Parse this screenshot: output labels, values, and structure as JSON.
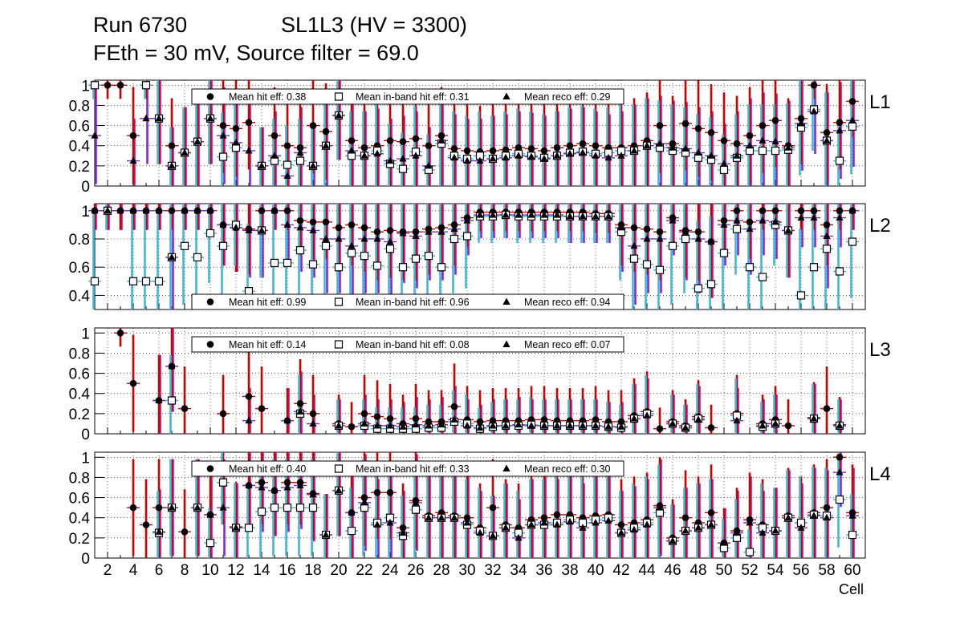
{
  "header": {
    "run": "Run 6730",
    "sl": "SL1L3 (HV = 3300)",
    "feth": "FEth = 30 mV, Source filter = 69.0"
  },
  "colors": {
    "hit_err": "#cc0000",
    "inband_err": "#33bbee",
    "reco_err": "#7a2fc8",
    "marker": "#000000",
    "open_marker_fill": "#ffffff",
    "grid": "#000000"
  },
  "chart_data": {
    "type": "scatter",
    "xlabel": "Cell",
    "xlim": [
      1,
      61
    ],
    "x_ticks": [
      2,
      4,
      6,
      8,
      10,
      12,
      14,
      16,
      18,
      20,
      22,
      24,
      26,
      28,
      30,
      32,
      34,
      36,
      38,
      40,
      42,
      44,
      46,
      48,
      50,
      52,
      54,
      56,
      58,
      60
    ],
    "panels": [
      {
        "label": "L1",
        "ylim": [
          0,
          1.05
        ],
        "y_ticks": [
          0,
          0.2,
          0.4,
          0.6,
          0.8,
          1
        ],
        "y_tick_labels": [
          "0",
          "0.2",
          "0.4",
          "0.6",
          "0.8",
          "1"
        ],
        "legend": {
          "position": "top",
          "hit": "Mean hit  eff: 0.38",
          "inband": "Mean in-band hit eff: 0.31",
          "reco": "Mean reco eff: 0.29"
        },
        "series": [
          {
            "name": "hit",
            "values": [
              1,
              1,
              1,
              0.5,
              1,
              0.67,
              0.4,
              0.33,
              0.44,
              0.67,
              0.6,
              0.57,
              0.63,
              0.2,
              0.5,
              0.4,
              0.38,
              0.6,
              0.54,
              0.7,
              0.45,
              0.38,
              0.4,
              0.45,
              0.44,
              0.47,
              0.4,
              0.5,
              0.37,
              0.35,
              0.34,
              0.35,
              0.36,
              0.38,
              0.37,
              0.35,
              0.38,
              0.4,
              0.42,
              0.4,
              0.38,
              0.38,
              0.4,
              0.45,
              0.6,
              0.42,
              0.62,
              0.57,
              0.53,
              0.45,
              0.42,
              0.5,
              0.6,
              0.65,
              0.4,
              0.67,
              1,
              0.53,
              0.63,
              0.84
            ]
          },
          {
            "name": "inband",
            "values": [
              1,
              null,
              null,
              null,
              1,
              0.67,
              0.2,
              0.33,
              0.44,
              0.67,
              0.29,
              0.38,
              null,
              0.2,
              0.25,
              0.21,
              0.25,
              0.2,
              0.4,
              0.7,
              0.3,
              0.3,
              0.35,
              0.22,
              0.17,
              0.34,
              0.16,
              0.42,
              0.3,
              0.27,
              0.3,
              0.27,
              0.3,
              0.32,
              0.3,
              0.28,
              0.3,
              0.33,
              0.34,
              0.32,
              0.33,
              0.35,
              0.35,
              0.4,
              0.38,
              0.35,
              0.33,
              0.28,
              0.26,
              0.16,
              0.28,
              0.35,
              0.35,
              0.35,
              0.36,
              0.58,
              0.76,
              0.45,
              0.25,
              0.59
            ]
          },
          {
            "name": "reco",
            "values": [
              0.5,
              null,
              null,
              0.25,
              0.67,
              0.67,
              0.2,
              0.33,
              0.44,
              0.67,
              0.5,
              0.43,
              0.35,
              0.2,
              0.3,
              0.1,
              0.33,
              0.2,
              0.4,
              0.7,
              0.35,
              0.3,
              0.32,
              0.25,
              0.27,
              0.3,
              0.2,
              0.45,
              0.28,
              0.25,
              0.25,
              0.27,
              0.28,
              0.3,
              0.29,
              0.27,
              0.3,
              0.32,
              0.33,
              0.3,
              0.28,
              0.3,
              0.35,
              0.4,
              0.42,
              0.38,
              0.37,
              0.33,
              0.3,
              0.22,
              0.3,
              0.4,
              0.45,
              0.44,
              0.38,
              0.62,
              0.74,
              0.45,
              0.55,
              0.65
            ]
          }
        ]
      },
      {
        "label": "L2",
        "ylim": [
          0.3,
          1.05
        ],
        "y_ticks": [
          0.4,
          0.6,
          0.8,
          1
        ],
        "y_tick_labels": [
          "0.4",
          "0.6",
          "0.8",
          "1"
        ],
        "legend": {
          "position": "bottom",
          "hit": "Mean hit  eff: 0.99",
          "inband": "Mean in-band hit eff: 0.96",
          "reco": "Mean reco eff: 0.94"
        },
        "series": [
          {
            "name": "hit",
            "values": [
              1,
              1,
              1,
              1,
              1,
              1,
              1,
              1,
              1,
              1,
              0.9,
              0.88,
              0.87,
              1,
              1,
              1,
              0.93,
              0.92,
              0.92,
              0.88,
              0.9,
              0.88,
              0.85,
              0.86,
              0.85,
              0.85,
              0.87,
              0.88,
              0.9,
              0.95,
              0.99,
              0.99,
              0.99,
              0.99,
              0.99,
              0.99,
              0.99,
              0.99,
              0.99,
              0.98,
              0.98,
              0.9,
              0.88,
              0.87,
              0.85,
              0.95,
              0.86,
              0.85,
              0.78,
              0.93,
              1,
              0.92,
              1,
              1,
              0.86,
              1,
              1,
              0.9,
              1,
              1
            ]
          },
          {
            "name": "inband",
            "values": [
              0.5,
              1,
              null,
              0.5,
              0.5,
              0.5,
              0.67,
              0.75,
              0.67,
              0.84,
              0.75,
              0.9,
              0.43,
              0.86,
              0.63,
              0.63,
              0.72,
              0.62,
              0.75,
              0.6,
              0.7,
              0.68,
              0.61,
              0.73,
              0.6,
              0.66,
              0.68,
              0.6,
              0.8,
              0.82,
              0.96,
              0.96,
              0.97,
              0.96,
              0.96,
              0.96,
              0.96,
              0.96,
              0.96,
              0.96,
              0.96,
              0.85,
              0.66,
              0.62,
              0.58,
              0.75,
              0.8,
              0.45,
              0.48,
              0.7,
              0.87,
              0.6,
              0.53,
              0.9,
              0.86,
              0.4,
              0.6,
              0.73,
              0.57,
              0.78
            ]
          },
          {
            "name": "reco",
            "values": [
              1,
              1,
              1,
              1,
              1,
              1,
              0.67,
              1,
              1,
              1,
              0.9,
              0.88,
              0.86,
              0.86,
              1,
              0.9,
              0.88,
              0.86,
              0.8,
              0.8,
              0.75,
              0.8,
              0.8,
              0.78,
              0.84,
              0.82,
              0.85,
              0.85,
              0.87,
              0.93,
              0.97,
              0.97,
              0.97,
              0.97,
              0.97,
              0.97,
              0.97,
              0.96,
              0.96,
              0.96,
              0.96,
              0.88,
              0.75,
              0.8,
              0.8,
              0.93,
              0.85,
              0.8,
              0.78,
              0.9,
              0.93,
              0.87,
              0.93,
              0.92,
              0.86,
              0.95,
              0.95,
              0.82,
              0.95,
              1
            ]
          }
        ]
      },
      {
        "label": "L3",
        "ylim": [
          0,
          1.05
        ],
        "y_ticks": [
          0,
          0.2,
          0.4,
          0.6,
          0.8,
          1
        ],
        "y_tick_labels": [
          "0",
          "0.2",
          "0.4",
          "0.6",
          "0.8",
          "1"
        ],
        "legend": {
          "position": "top",
          "hit": "Mean hit  eff: 0.14",
          "inband": "Mean in-band hit eff: 0.08",
          "reco": "Mean reco eff: 0.07"
        },
        "series": [
          {
            "name": "hit",
            "values": [
              null,
              null,
              1,
              0.5,
              null,
              0.33,
              0.67,
              0.25,
              null,
              null,
              0.2,
              null,
              0.37,
              0.25,
              null,
              0.13,
              0.3,
              0.2,
              null,
              0.1,
              0.07,
              0.2,
              0.17,
              0.15,
              0.1,
              0.15,
              0.12,
              0.12,
              0.27,
              0.14,
              0.12,
              0.13,
              0.13,
              0.13,
              0.14,
              0.14,
              0.13,
              0.13,
              0.13,
              0.14,
              0.12,
              0.12,
              0.18,
              0.22,
              0.05,
              0.12,
              0.08,
              0.17,
              0.06,
              null,
              0.2,
              null,
              0.1,
              0.14,
              0.08,
              null,
              0.16,
              0.25,
              0.09,
              null
            ]
          },
          {
            "name": "inband",
            "values": [
              null,
              null,
              null,
              null,
              null,
              null,
              0.33,
              null,
              null,
              null,
              null,
              null,
              null,
              null,
              null,
              null,
              0.2,
              null,
              null,
              0.08,
              null,
              0.08,
              0.05,
              0.05,
              0.05,
              0.05,
              0.06,
              0.06,
              0.12,
              0.1,
              0.05,
              0.07,
              0.08,
              0.08,
              0.09,
              0.08,
              0.08,
              0.08,
              0.08,
              0.08,
              0.07,
              0.06,
              0.15,
              0.2,
              null,
              0.1,
              0.06,
              0.15,
              null,
              null,
              0.18,
              null,
              0.07,
              0.1,
              null,
              null,
              0.15,
              null,
              0.08,
              null
            ]
          },
          {
            "name": "reco",
            "values": [
              null,
              null,
              null,
              null,
              null,
              0.33,
              0.67,
              null,
              null,
              null,
              null,
              null,
              0.13,
              null,
              null,
              0.13,
              0.22,
              0.1,
              null,
              0.08,
              null,
              0.1,
              0.08,
              0.08,
              0.07,
              0.09,
              0.08,
              0.09,
              0.14,
              0.08,
              0.06,
              0.08,
              0.08,
              0.09,
              0.08,
              0.08,
              0.08,
              0.08,
              0.08,
              0.08,
              0.07,
              0.07,
              0.15,
              0.18,
              null,
              0.1,
              0.06,
              0.14,
              null,
              null,
              0.13,
              null,
              0.08,
              0.1,
              null,
              null,
              0.15,
              null,
              0.08,
              null
            ]
          }
        ]
      },
      {
        "label": "L4",
        "ylim": [
          0,
          1.05
        ],
        "y_ticks": [
          0,
          0.2,
          0.4,
          0.6,
          0.8,
          1
        ],
        "y_tick_labels": [
          "0",
          "0.2",
          "0.4",
          "0.6",
          "0.8",
          "1"
        ],
        "legend": {
          "position": "top",
          "hit": "Mean hit  eff: 0.40",
          "inband": "Mean in-band hit eff: 0.33",
          "reco": "Mean reco eff: 0.30"
        },
        "series": [
          {
            "name": "hit",
            "values": [
              null,
              null,
              null,
              0.5,
              0.33,
              0.5,
              0.5,
              0.26,
              0.5,
              0.43,
              0.75,
              0.31,
              0.72,
              0.75,
              0.67,
              0.75,
              0.75,
              0.64,
              0.23,
              0.67,
              0.45,
              0.6,
              0.65,
              0.65,
              0.3,
              0.57,
              0.42,
              0.45,
              0.42,
              0.4,
              0.3,
              0.5,
              0.33,
              0.3,
              0.38,
              0.4,
              0.43,
              0.43,
              0.4,
              0.42,
              0.43,
              0.33,
              0.35,
              0.38,
              0.52,
              0.2,
              0.4,
              0.35,
              0.45,
              0.15,
              0.27,
              0.38,
              0.33,
              0.27,
              0.42,
              0.35,
              0.45,
              0.5,
              1,
              0.45
            ]
          },
          {
            "name": "inband",
            "values": [
              null,
              null,
              null,
              null,
              null,
              0.25,
              0.5,
              null,
              0.5,
              0.15,
              0.75,
              0.3,
              0.3,
              0.46,
              0.5,
              0.5,
              0.5,
              0.5,
              0.23,
              0.67,
              0.27,
              0.5,
              0.35,
              0.4,
              0.22,
              0.48,
              0.4,
              0.4,
              0.4,
              0.33,
              0.27,
              0.22,
              0.3,
              0.25,
              0.33,
              0.33,
              0.35,
              0.38,
              0.35,
              0.38,
              0.4,
              0.25,
              0.3,
              0.35,
              0.45,
              0.17,
              0.27,
              0.3,
              0.33,
              0.1,
              0.2,
              0.06,
              0.3,
              0.27,
              0.4,
              0.35,
              0.43,
              0.42,
              0.58,
              0.23
            ]
          },
          {
            "name": "reco",
            "values": [
              null,
              null,
              null,
              null,
              null,
              0.26,
              0.5,
              null,
              0.5,
              0.43,
              0.5,
              0.3,
              0.72,
              0.7,
              0.67,
              0.7,
              0.72,
              0.63,
              0.23,
              0.67,
              0.45,
              0.55,
              0.33,
              0.35,
              0.25,
              0.55,
              0.4,
              0.4,
              0.4,
              0.35,
              0.25,
              0.22,
              0.3,
              0.2,
              0.33,
              0.35,
              0.33,
              0.36,
              0.3,
              0.35,
              0.37,
              0.25,
              0.28,
              0.33,
              0.5,
              0.17,
              0.27,
              0.3,
              0.33,
              0.15,
              0.25,
              0.35,
              0.25,
              0.27,
              0.4,
              0.3,
              0.42,
              0.4,
              0.85,
              0.42
            ]
          }
        ]
      }
    ]
  }
}
